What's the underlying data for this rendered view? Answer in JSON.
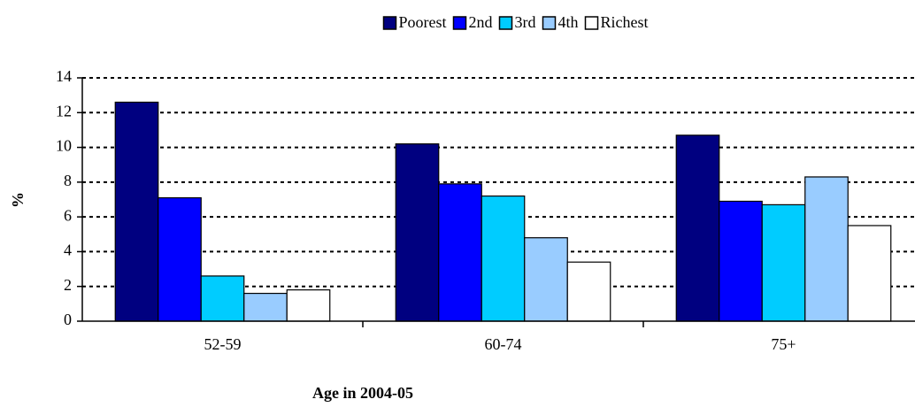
{
  "chart_data": {
    "type": "bar",
    "x_label": "Age in 2004-05",
    "y_label": "%",
    "categories": [
      "52-59",
      "60-74",
      "75+"
    ],
    "series": [
      {
        "name": "Poorest",
        "color": "#000080",
        "values": [
          12.6,
          10.2,
          10.7
        ]
      },
      {
        "name": "2nd",
        "color": "#0000ff",
        "values": [
          7.1,
          7.9,
          6.9
        ]
      },
      {
        "name": "3rd",
        "color": "#00ccff",
        "values": [
          2.6,
          7.2,
          6.7
        ]
      },
      {
        "name": "4th",
        "color": "#99ccff",
        "values": [
          1.6,
          4.8,
          8.3
        ]
      },
      {
        "name": "Richest",
        "color": "#ffffff",
        "values": [
          1.8,
          3.4,
          5.5
        ]
      }
    ],
    "ylim": [
      0,
      14
    ],
    "yticks": [
      0,
      2,
      4,
      6,
      8,
      10,
      12,
      14
    ],
    "grid": true,
    "legend": "top"
  }
}
